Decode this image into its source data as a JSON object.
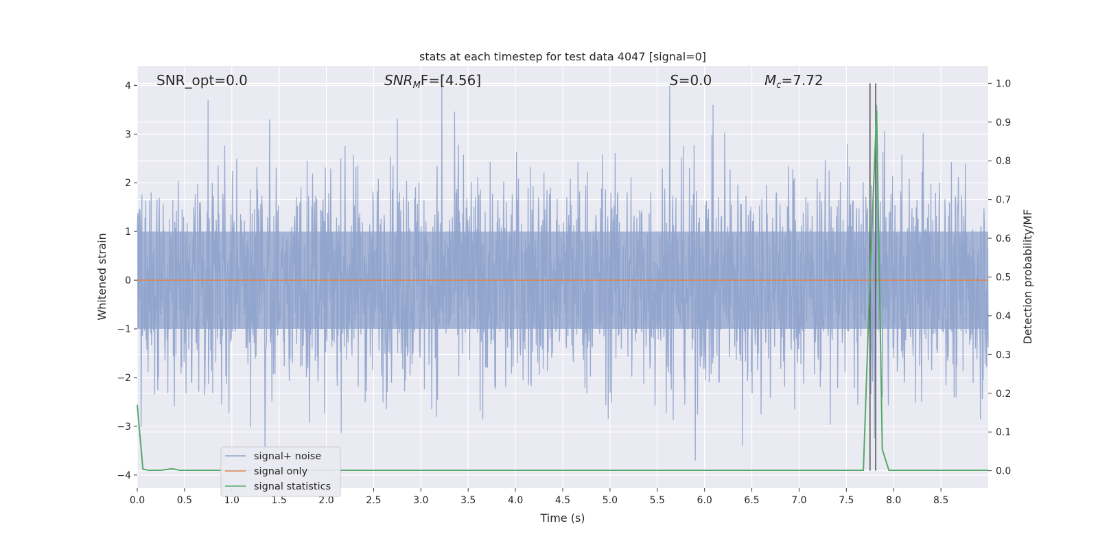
{
  "chart_data": {
    "type": "line",
    "title": "stats at each timestep for test data 4047 [signal=0]",
    "xlabel": "Time (s)",
    "ylabel": "Whitened strain",
    "ylabel_right": "Detection probability/MF",
    "xlim": [
      0.0,
      9.0
    ],
    "ylim": [
      -4.27,
      4.4
    ],
    "ylim_right": [
      -0.045,
      1.045
    ],
    "x_ticks": [
      "0.0",
      "0.5",
      "1.0",
      "1.5",
      "2.0",
      "2.5",
      "3.0",
      "3.5",
      "4.0",
      "4.5",
      "5.0",
      "5.5",
      "6.0",
      "6.5",
      "7.0",
      "7.5",
      "8.0",
      "8.5"
    ],
    "y_ticks": [
      "−4",
      "−3",
      "−2",
      "−1",
      "0",
      "1",
      "2",
      "3",
      "4"
    ],
    "y_ticks_right": [
      "0.0",
      "0.1",
      "0.2",
      "0.3",
      "0.4",
      "0.5",
      "0.6",
      "0.7",
      "0.8",
      "0.9",
      "1.0"
    ],
    "grid": true,
    "legend_position": "lower-left",
    "annotations": {
      "snr_opt": "SNR_opt=0.0",
      "snr_mf_main": "SNR",
      "snr_mf_sub": "M",
      "snr_mf_rest": "F=[4.56]",
      "s_main": "S",
      "s_rest": "=0.0",
      "mc_main": "M",
      "mc_sub": "c",
      "mc_rest": "=7.72"
    },
    "series": [
      {
        "name": "signal+ noise",
        "color": "#8fa3cc",
        "description_values": "noise envelope",
        "x_range": [
          0.0,
          9.0
        ],
        "typical_amplitude": 1.6,
        "peaks": [
          {
            "x": 0.75,
            "y": 3.7
          },
          {
            "x": 1.4,
            "y": 3.3
          },
          {
            "x": 3.22,
            "y": 4.0
          },
          {
            "x": 5.63,
            "y": 4.0
          },
          {
            "x": 7.82,
            "y": 3.6
          },
          {
            "x": 5.9,
            "y": -3.7
          },
          {
            "x": 1.35,
            "y": -3.5
          },
          {
            "x": 6.4,
            "y": -3.4
          }
        ]
      },
      {
        "name": "signal only",
        "color": "#dd8452",
        "x": [
          0.0,
          9.0
        ],
        "y": [
          0.0,
          0.0
        ]
      },
      {
        "name": "signal statistics",
        "color": "#55a868",
        "axis": "right",
        "x": [
          0.0,
          0.06,
          0.12,
          0.25,
          0.37,
          0.45,
          0.6,
          1.0,
          2.0,
          3.0,
          4.0,
          5.0,
          6.0,
          7.0,
          7.5,
          7.68,
          7.75,
          7.82,
          7.88,
          7.95,
          8.05,
          8.5,
          9.0
        ],
        "y": [
          0.17,
          0.004,
          0.001,
          0.001,
          0.005,
          0.001,
          0.001,
          0.001,
          0.001,
          0.001,
          0.001,
          0.001,
          0.001,
          0.001,
          0.001,
          0.001,
          0.5,
          0.93,
          0.055,
          0.001,
          0.001,
          0.001,
          0.001
        ]
      }
    ],
    "vertical_markers": [
      7.75,
      7.81
    ],
    "vertical_marker_color": "#555555"
  }
}
